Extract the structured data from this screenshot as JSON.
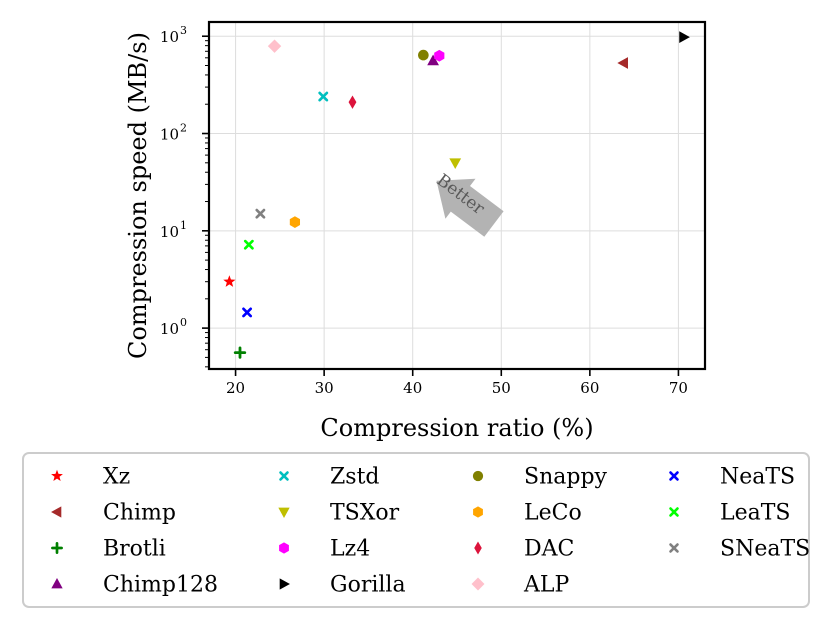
{
  "chart_data": {
    "type": "scatter",
    "title": "",
    "xlabel": "Compression ratio (%)",
    "ylabel": "Compression speed (MB/s)",
    "xscale": "linear",
    "yscale": "log",
    "xlim": [
      17,
      73
    ],
    "ylim": [
      0.38,
      1400
    ],
    "xticks": [
      20,
      30,
      40,
      50,
      60,
      70
    ],
    "yticks": [
      {
        "value": 1,
        "base": "10",
        "exp": "0"
      },
      {
        "value": 10,
        "base": "10",
        "exp": "1"
      },
      {
        "value": 100,
        "base": "10",
        "exp": "2"
      },
      {
        "value": 1000,
        "base": "10",
        "exp": "3"
      }
    ],
    "grid": true,
    "legend_position": "bottom",
    "annotation": {
      "text": "Better",
      "direction": "toward upper-left"
    },
    "series": [
      {
        "name": "Xz",
        "x": 19.3,
        "y": 3.0,
        "marker": "star",
        "color": "#ff0000"
      },
      {
        "name": "Chimp",
        "x": 63.8,
        "y": 530,
        "marker": "triangle-left",
        "color": "#a52a2a"
      },
      {
        "name": "Brotli",
        "x": 20.5,
        "y": 0.56,
        "marker": "plus",
        "color": "#008000"
      },
      {
        "name": "Chimp128",
        "x": 42.3,
        "y": 560,
        "marker": "triangle-up",
        "color": "#800080"
      },
      {
        "name": "Zstd",
        "x": 29.9,
        "y": 240,
        "marker": "x",
        "color": "#00bfbf"
      },
      {
        "name": "TSXor",
        "x": 44.8,
        "y": 50,
        "marker": "triangle-down",
        "color": "#bfbf00"
      },
      {
        "name": "Lz4",
        "x": 43.0,
        "y": 630,
        "marker": "hexagon",
        "color": "#ff00ff"
      },
      {
        "name": "Gorilla",
        "x": 70.6,
        "y": 980,
        "marker": "triangle-right",
        "color": "#000000"
      },
      {
        "name": "Snappy",
        "x": 41.2,
        "y": 640,
        "marker": "circle",
        "color": "#808000"
      },
      {
        "name": "LeCo",
        "x": 26.7,
        "y": 12.3,
        "marker": "hexagon",
        "color": "#ffa500"
      },
      {
        "name": "DAC",
        "x": 33.2,
        "y": 210,
        "marker": "thin-diamond",
        "color": "#dc143c"
      },
      {
        "name": "ALP",
        "x": 24.4,
        "y": 790,
        "marker": "diamond",
        "color": "#ffc0cb"
      },
      {
        "name": "NeaTS",
        "x": 21.3,
        "y": 1.45,
        "marker": "x",
        "color": "#0000ff"
      },
      {
        "name": "LeaTS",
        "x": 21.5,
        "y": 7.2,
        "marker": "x",
        "color": "#00ff00"
      },
      {
        "name": "SNeaTS",
        "x": 22.8,
        "y": 15,
        "marker": "x",
        "color": "#808080"
      }
    ]
  }
}
